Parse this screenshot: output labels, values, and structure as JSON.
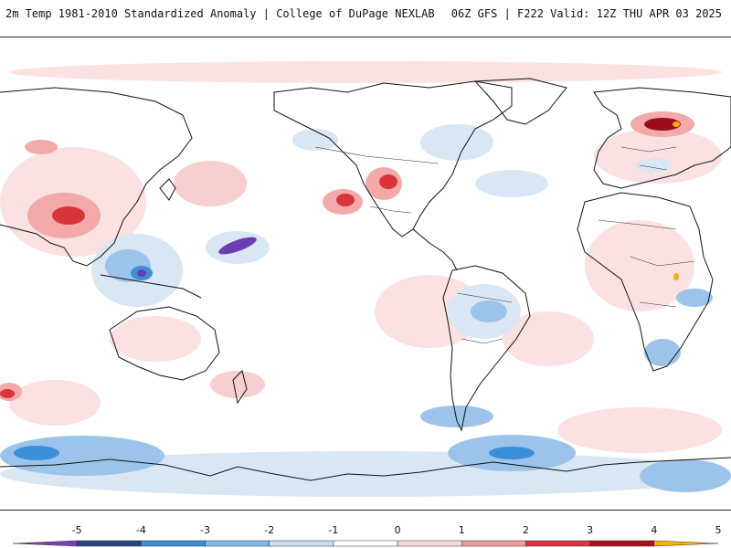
{
  "header": {
    "title": "2m Temp 1981-2010 Standardized Anomaly | College of DuPage NEXLAB",
    "run_info": "06Z GFS | F222 Valid: 12Z THU APR 03 2025"
  },
  "colorbar": {
    "ticks": [
      "-5",
      "-4",
      "-3",
      "-2",
      "-1",
      "0",
      "1",
      "2",
      "3",
      "4",
      "5"
    ],
    "colors": [
      "#7a3fb8",
      "#24477f",
      "#3b8fd9",
      "#7fb7e6",
      "#c9ddf2",
      "#ffffff",
      "#f7d8d8",
      "#ee9a9a",
      "#d6383c",
      "#a8101e",
      "#ffb000"
    ]
  },
  "map": {
    "anomaly_colors": {
      "weak_warm": "#fbe1e1",
      "mod_warm": "#f3a9a9",
      "strong_warm": "#d9343a",
      "extreme_warm": "#9b0b1b",
      "weak_cold": "#d9e7f5",
      "mod_cold": "#9cc4ea",
      "strong_cold": "#3b8fd9",
      "extreme_cold": "#6a3db0"
    }
  }
}
